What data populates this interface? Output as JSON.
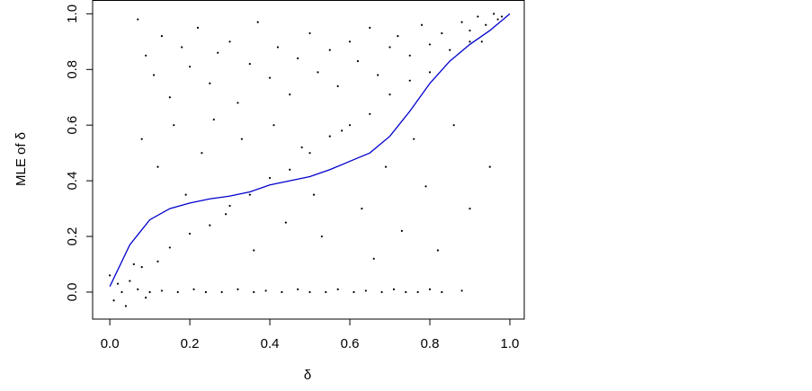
{
  "chart_data": {
    "type": "scatter",
    "xlabel": "δ",
    "ylabel": "MLE of δ",
    "xlim": [
      -0.043,
      1.036
    ],
    "ylim": [
      -0.097,
      1.048
    ],
    "xticks": [
      {
        "value": 0,
        "label": "0.0"
      },
      0.2,
      0.4,
      0.6,
      0.8,
      {
        "value": 1,
        "label": "1.0"
      }
    ],
    "yticks": [
      {
        "value": 0,
        "label": "0.0"
      },
      0.2,
      0.4,
      0.6,
      0.8,
      {
        "value": 1,
        "label": "1.0"
      }
    ],
    "series": [
      {
        "type": "scatter",
        "color": "#000000",
        "x": [
          0.02,
          0.05,
          0.08,
          0.12,
          0.15,
          0.2,
          0.25,
          0.3,
          0.35,
          0.4,
          0.45,
          0.5,
          0.55,
          0.6,
          0.65,
          0.7,
          0.75,
          0.8,
          0.9,
          0.97,
          0.03,
          0.07,
          0.1,
          0.13,
          0.17,
          0.21,
          0.24,
          0.28,
          0.32,
          0.36,
          0.39,
          0.43,
          0.47,
          0.5,
          0.54,
          0.57,
          0.61,
          0.64,
          0.68,
          0.71,
          0.74,
          0.77,
          0.8,
          0.83,
          0.88,
          0.07,
          0.09,
          0.11,
          0.13,
          0.15,
          0.18,
          0.2,
          0.22,
          0.25,
          0.27,
          0.3,
          0.32,
          0.35,
          0.37,
          0.4,
          0.42,
          0.45,
          0.47,
          0.5,
          0.52,
          0.55,
          0.57,
          0.6,
          0.62,
          0.65,
          0.67,
          0.7,
          0.72,
          0.75,
          0.78,
          0.8,
          0.83,
          0.85,
          0.88,
          0.9,
          0.92,
          0.94,
          0.96,
          0.98,
          0.93,
          0.08,
          0.12,
          0.16,
          0.19,
          0.23,
          0.26,
          0.29,
          0.33,
          0.36,
          0.41,
          0.44,
          0.48,
          0.51,
          0.53,
          0.58,
          0.63,
          0.66,
          0.69,
          0.73,
          0.76,
          0.79,
          0.82,
          0.86,
          0.9,
          0.95,
          0.01,
          0.04,
          0.06,
          0.0,
          0.09
        ],
        "y": [
          0.03,
          0.04,
          0.09,
          0.11,
          0.16,
          0.21,
          0.24,
          0.31,
          0.35,
          0.41,
          0.44,
          0.5,
          0.56,
          0.6,
          0.64,
          0.71,
          0.76,
          0.79,
          0.9,
          0.98,
          0.0,
          0.01,
          0.0,
          0.005,
          0.0,
          0.01,
          0.0,
          0.0,
          0.01,
          0.0,
          0.005,
          0.0,
          0.01,
          0.0,
          0.0,
          0.01,
          0.0,
          0.005,
          0.0,
          0.01,
          0.0,
          0.0,
          0.01,
          0.0,
          0.005,
          0.98,
          0.85,
          0.78,
          0.92,
          0.7,
          0.88,
          0.81,
          0.95,
          0.75,
          0.86,
          0.9,
          0.68,
          0.82,
          0.97,
          0.77,
          0.88,
          0.71,
          0.84,
          0.93,
          0.79,
          0.87,
          0.74,
          0.9,
          0.83,
          0.95,
          0.78,
          0.88,
          0.92,
          0.85,
          0.96,
          0.89,
          0.93,
          0.87,
          0.97,
          0.94,
          0.99,
          0.96,
          1.0,
          0.99,
          0.9,
          0.55,
          0.45,
          0.6,
          0.35,
          0.5,
          0.62,
          0.28,
          0.55,
          0.15,
          0.6,
          0.25,
          0.52,
          0.35,
          0.2,
          0.58,
          0.3,
          0.12,
          0.45,
          0.22,
          0.55,
          0.38,
          0.15,
          0.6,
          0.3,
          0.45,
          -0.03,
          -0.05,
          0.1,
          0.06,
          -0.02
        ]
      },
      {
        "type": "line",
        "color": "#0000cc",
        "x": [
          0,
          0.05,
          0.1,
          0.15,
          0.2,
          0.25,
          0.3,
          0.35,
          0.4,
          0.45,
          0.5,
          0.55,
          0.6,
          0.65,
          0.7,
          0.75,
          0.8,
          0.85,
          0.9,
          0.95,
          1.0
        ],
        "y": [
          0.02,
          0.17,
          0.26,
          0.3,
          0.32,
          0.335,
          0.345,
          0.36,
          0.385,
          0.4,
          0.415,
          0.44,
          0.47,
          0.5,
          0.56,
          0.65,
          0.75,
          0.83,
          0.89,
          0.94,
          1.0
        ]
      }
    ]
  }
}
